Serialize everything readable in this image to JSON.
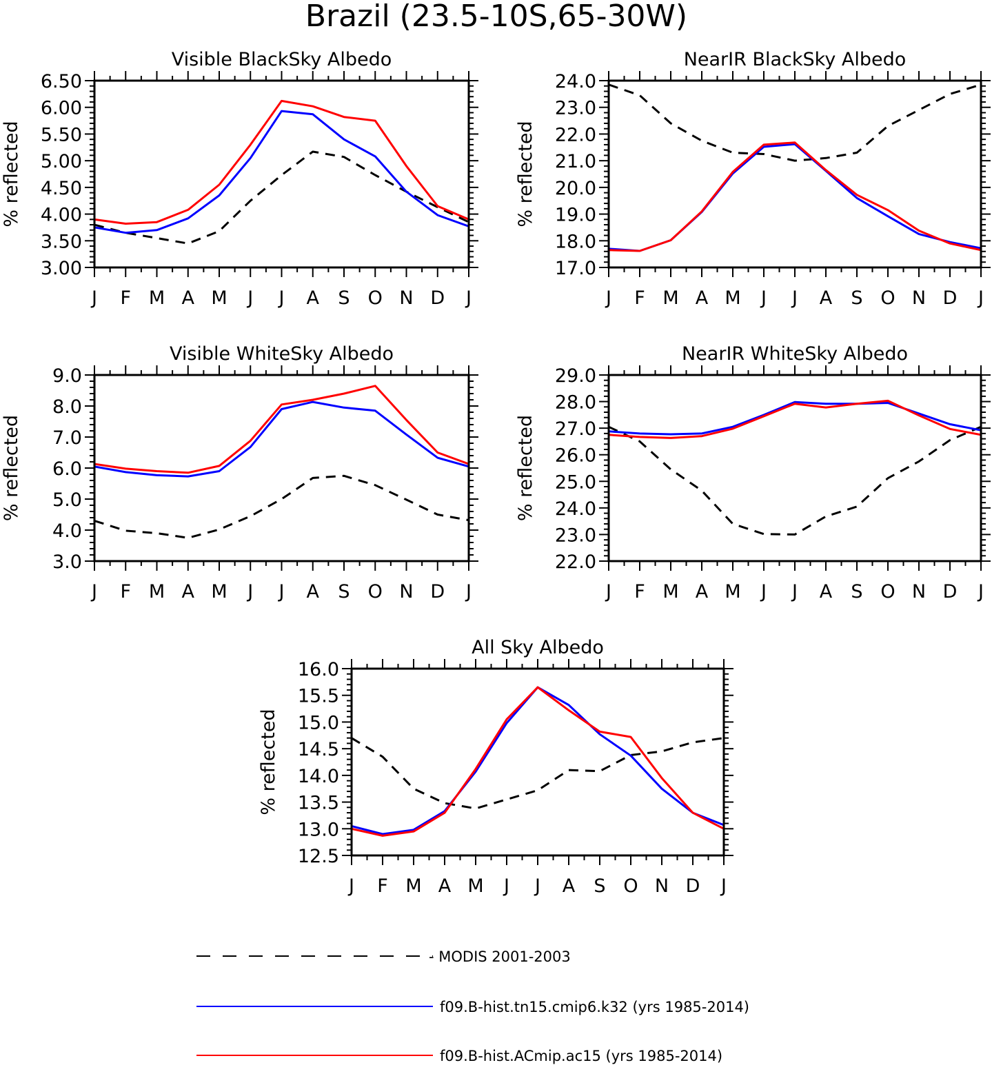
{
  "figure": {
    "title": "Brazil (23.5-10S,65-30W)"
  },
  "legend": [
    {
      "label": "- MODIS 2001-2003",
      "color": "#000000",
      "dash": true
    },
    {
      "label": "f09.B-hist.tn15.cmip6.k32 (yrs 1985-2014)",
      "color": "#0000ff",
      "dash": false
    },
    {
      "label": "f09.B-hist.ACmip.ac15 (yrs 1985-2014)",
      "color": "#ff0000",
      "dash": false
    }
  ],
  "chart_data": [
    {
      "type": "line",
      "title": "Visible BlackSky Albedo",
      "ylabel": "% reflected",
      "categories": [
        "J",
        "F",
        "M",
        "A",
        "M",
        "J",
        "J",
        "A",
        "S",
        "O",
        "N",
        "D",
        "J"
      ],
      "ylim": [
        3.0,
        6.5
      ],
      "yticks": [
        "3.00",
        "3.50",
        "4.00",
        "4.50",
        "5.00",
        "5.50",
        "6.00",
        "6.50"
      ],
      "series": [
        {
          "name": "MODIS 2001-2003",
          "color": "#000000",
          "dash": true,
          "values": [
            3.8,
            3.65,
            3.55,
            3.45,
            3.68,
            4.25,
            4.73,
            5.17,
            5.07,
            4.73,
            4.42,
            4.13,
            3.85
          ]
        },
        {
          "name": "f09.B-hist.tn15.cmip6.k32 (yrs 1985-2014)",
          "color": "#0000ff",
          "dash": false,
          "values": [
            3.75,
            3.65,
            3.7,
            3.92,
            4.35,
            5.05,
            5.93,
            5.87,
            5.4,
            5.08,
            4.42,
            3.98,
            3.77
          ]
        },
        {
          "name": "f09.B-hist.ACmip.ac15 (yrs 1985-2014)",
          "color": "#ff0000",
          "dash": false,
          "values": [
            3.9,
            3.82,
            3.85,
            4.08,
            4.55,
            5.3,
            6.12,
            6.02,
            5.82,
            5.75,
            4.9,
            4.15,
            3.9
          ]
        }
      ]
    },
    {
      "type": "line",
      "title": "NearIR BlackSky Albedo",
      "ylabel": "% reflected",
      "categories": [
        "J",
        "F",
        "M",
        "A",
        "M",
        "J",
        "J",
        "A",
        "S",
        "O",
        "N",
        "D",
        "J"
      ],
      "ylim": [
        17.0,
        24.0
      ],
      "yticks": [
        "17.0",
        "18.0",
        "19.0",
        "20.0",
        "21.0",
        "22.0",
        "23.0",
        "24.0"
      ],
      "series": [
        {
          "name": "MODIS 2001-2003",
          "color": "#000000",
          "dash": true,
          "values": [
            23.85,
            23.45,
            22.4,
            21.75,
            21.3,
            21.25,
            21.0,
            21.1,
            21.3,
            22.3,
            22.9,
            23.5,
            23.85
          ]
        },
        {
          "name": "f09.B-hist.tn15.cmip6.k32 (yrs 1985-2014)",
          "color": "#0000ff",
          "dash": false,
          "values": [
            17.7,
            17.62,
            18.02,
            19.08,
            20.52,
            21.52,
            21.62,
            20.62,
            19.6,
            18.92,
            18.25,
            17.95,
            17.72
          ]
        },
        {
          "name": "f09.B-hist.ACmip.ac15 (yrs 1985-2014)",
          "color": "#ff0000",
          "dash": false,
          "values": [
            17.65,
            17.62,
            18.02,
            19.1,
            20.58,
            21.6,
            21.68,
            20.65,
            19.72,
            19.15,
            18.38,
            17.9,
            17.65
          ]
        }
      ]
    },
    {
      "type": "line",
      "title": "Visible WhiteSky Albedo",
      "ylabel": "% reflected",
      "categories": [
        "J",
        "F",
        "M",
        "A",
        "M",
        "J",
        "J",
        "A",
        "S",
        "O",
        "N",
        "D",
        "J"
      ],
      "ylim": [
        3.0,
        9.0
      ],
      "yticks": [
        "3.0",
        "4.0",
        "5.0",
        "6.0",
        "7.0",
        "8.0",
        "9.0"
      ],
      "series": [
        {
          "name": "MODIS 2001-2003",
          "color": "#000000",
          "dash": true,
          "values": [
            4.3,
            3.98,
            3.9,
            3.75,
            4.02,
            4.45,
            5.0,
            5.68,
            5.75,
            5.45,
            4.98,
            4.5,
            4.32
          ]
        },
        {
          "name": "f09.B-hist.tn15.cmip6.k32 (yrs 1985-2014)",
          "color": "#0000ff",
          "dash": false,
          "values": [
            6.05,
            5.87,
            5.77,
            5.73,
            5.9,
            6.68,
            7.9,
            8.13,
            7.95,
            7.85,
            7.08,
            6.33,
            6.05
          ]
        },
        {
          "name": "f09.B-hist.ACmip.ac15 (yrs 1985-2014)",
          "color": "#ff0000",
          "dash": false,
          "values": [
            6.13,
            5.98,
            5.9,
            5.85,
            6.07,
            6.88,
            8.05,
            8.2,
            8.4,
            8.65,
            7.55,
            6.5,
            6.13
          ]
        }
      ]
    },
    {
      "type": "line",
      "title": "NearIR WhiteSky Albedo",
      "ylabel": "% reflected",
      "categories": [
        "J",
        "F",
        "M",
        "A",
        "M",
        "J",
        "J",
        "A",
        "S",
        "O",
        "N",
        "D",
        "J"
      ],
      "ylim": [
        22.0,
        29.0
      ],
      "yticks": [
        "22.0",
        "23.0",
        "24.0",
        "25.0",
        "26.0",
        "27.0",
        "28.0",
        "29.0"
      ],
      "series": [
        {
          "name": "MODIS 2001-2003",
          "color": "#000000",
          "dash": true,
          "values": [
            27.05,
            26.5,
            25.45,
            24.65,
            23.4,
            23.02,
            23.0,
            23.68,
            24.05,
            25.12,
            25.75,
            26.55,
            27.05
          ]
        },
        {
          "name": "f09.B-hist.tn15.cmip6.k32 (yrs 1985-2014)",
          "color": "#0000ff",
          "dash": false,
          "values": [
            26.88,
            26.8,
            26.77,
            26.8,
            27.05,
            27.5,
            27.98,
            27.92,
            27.92,
            27.95,
            27.55,
            27.15,
            26.92
          ]
        },
        {
          "name": "f09.B-hist.ACmip.ac15 (yrs 1985-2014)",
          "color": "#ff0000",
          "dash": false,
          "values": [
            26.75,
            26.67,
            26.63,
            26.7,
            26.98,
            27.45,
            27.92,
            27.78,
            27.92,
            28.03,
            27.48,
            26.97,
            26.75
          ]
        }
      ]
    },
    {
      "type": "line",
      "title": "All Sky Albedo",
      "ylabel": "% reflected",
      "categories": [
        "J",
        "F",
        "M",
        "A",
        "M",
        "J",
        "J",
        "A",
        "S",
        "O",
        "N",
        "D",
        "J"
      ],
      "ylim": [
        12.5,
        16.0
      ],
      "yticks": [
        "12.5",
        "13.0",
        "13.5",
        "14.0",
        "14.5",
        "15.0",
        "15.5",
        "16.0"
      ],
      "series": [
        {
          "name": "MODIS 2001-2003",
          "color": "#000000",
          "dash": true,
          "values": [
            14.7,
            14.35,
            13.75,
            13.48,
            13.38,
            13.55,
            13.72,
            14.1,
            14.08,
            14.38,
            14.45,
            14.62,
            14.7
          ]
        },
        {
          "name": "f09.B-hist.tn15.cmip6.k32 (yrs 1985-2014)",
          "color": "#0000ff",
          "dash": false,
          "values": [
            13.05,
            12.9,
            12.98,
            13.33,
            14.07,
            14.98,
            15.65,
            15.32,
            14.77,
            14.37,
            13.75,
            13.3,
            13.07
          ]
        },
        {
          "name": "f09.B-hist.ACmip.ac15 (yrs 1985-2014)",
          "color": "#ff0000",
          "dash": false,
          "values": [
            13.0,
            12.87,
            12.95,
            13.3,
            14.12,
            15.05,
            15.65,
            15.22,
            14.82,
            14.72,
            13.95,
            13.3,
            13.0
          ]
        }
      ]
    }
  ]
}
